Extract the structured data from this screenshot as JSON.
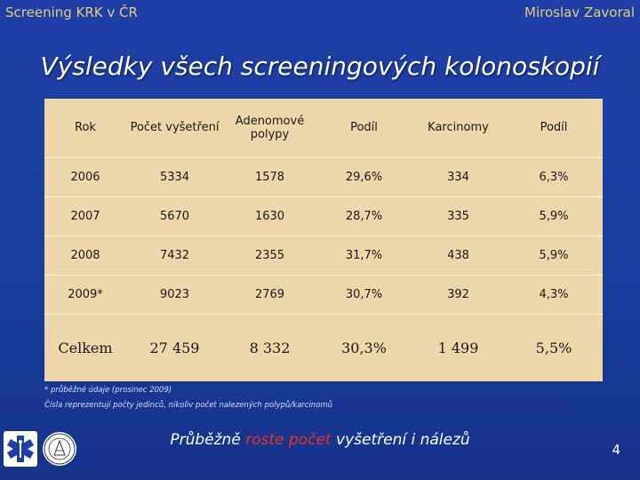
{
  "header": {
    "left_text": "Screening KRK v ČR",
    "right_text": "Miroslav Zavoral"
  },
  "title": "Výsledky všech screeningových kolonoskopií",
  "table": {
    "headers": [
      "Rok",
      "Počet vyšetření",
      "Adenomové polypy",
      "Podíl",
      "Karcinomy",
      "Podíl"
    ],
    "rows": [
      [
        "2006",
        "5334",
        "1578",
        "29,6%",
        "334",
        "6,3%"
      ],
      [
        "2007",
        "5670",
        "1630",
        "28,7%",
        "335",
        "5,9%"
      ],
      [
        "2008",
        "7432",
        "2355",
        "31,7%",
        "438",
        "5,9%"
      ],
      [
        "2009*",
        "9023",
        "2769",
        "30,7%",
        "392",
        "4,3%"
      ]
    ],
    "total": [
      "Celkem",
      "27 459",
      "8 332",
      "30,3%",
      "1 499",
      "5,5%"
    ]
  },
  "footnotes": {
    "note1": "* průběžné údaje (prosinec 2009)",
    "note2": "Čísla reprezentují počty jedinců, nikoliv počet nalezených polypů/karcinomů"
  },
  "conclusion": {
    "part1": "Průběžně ",
    "highlight": "roste počet",
    "part2": " vyšetření i nálezů"
  },
  "page_number": "4",
  "colors": {
    "background": "#1c3ca2",
    "table_background": "#ecd7a9",
    "header_text": "#e6c87a",
    "highlight": "#e4302b"
  },
  "icons": [
    "star-of-life-logo",
    "university-seal-logo"
  ]
}
